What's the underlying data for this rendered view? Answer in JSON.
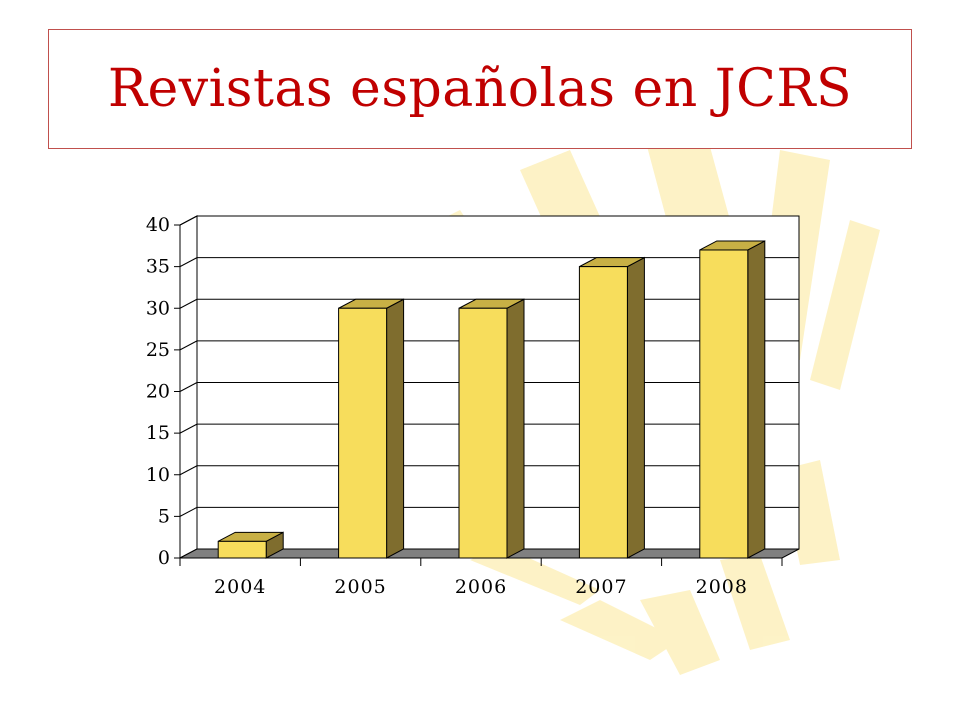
{
  "slide": {
    "title": "Revistas españolas en JCRS"
  },
  "colors": {
    "title": "#c00000",
    "title_border": "#c0504d",
    "bar_front": "#f7dd5c",
    "bar_top": "#c8b045",
    "bar_side": "#7f6d2e",
    "floor": "#808080",
    "watermark": "#fdf2c4"
  },
  "chart_data": {
    "type": "bar",
    "style": "3d-column",
    "categories": [
      "2004",
      "2005",
      "2006",
      "2007",
      "2008"
    ],
    "values": [
      2,
      30,
      30,
      35,
      37
    ],
    "title": "",
    "xlabel": "",
    "ylabel": "",
    "ylim": [
      0,
      40
    ],
    "yticks": [
      0,
      5,
      10,
      15,
      20,
      25,
      30,
      35,
      40
    ],
    "grid": true,
    "legend": false
  }
}
